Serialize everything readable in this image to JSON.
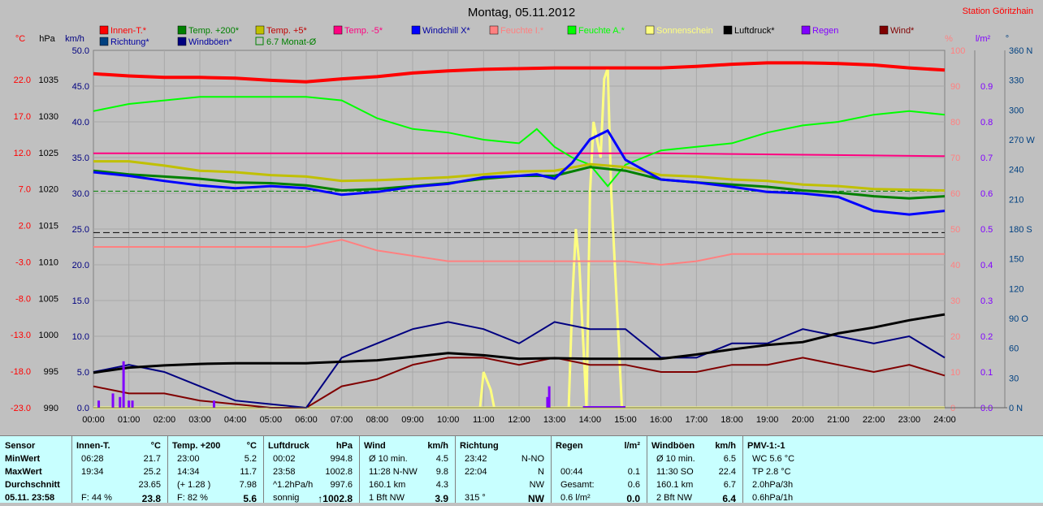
{
  "title": "Montag, 05.11.2012",
  "station": "Station Göritzhain",
  "unit_labels": {
    "temp": "°C",
    "press": "hPa",
    "wind": "km/h",
    "hum": "%",
    "rain": "l/m²",
    "dir": "°"
  },
  "legend": [
    {
      "label": "Innen-T.*",
      "color": "#ff0000"
    },
    {
      "label": "Temp. +200*",
      "color": "#008000"
    },
    {
      "label": "Temp. +5*",
      "color": "#c0c000"
    },
    {
      "label": "Temp. -5*",
      "color": "#ff0080"
    },
    {
      "label": "Windchill X*",
      "color": "#0000ff"
    },
    {
      "label": "Feuchte I.*",
      "color": "#ff8080"
    },
    {
      "label": "Feuchte A.*",
      "color": "#00ff00"
    },
    {
      "label": "Sonnenschein",
      "color": "#ffff80"
    },
    {
      "label": "Luftdruck*",
      "color": "#000000"
    },
    {
      "label": "Regen",
      "color": "#8000ff"
    },
    {
      "label": "Wind*",
      "color": "#800000"
    },
    {
      "label": "Richtung*",
      "color": "#004080"
    },
    {
      "label": "Windböen*",
      "color": "#000080"
    },
    {
      "label": "6.7 Monat-Ø",
      "color": "#008000"
    }
  ],
  "chart_data": {
    "type": "line",
    "title": "Montag, 05.11.2012",
    "x_ticks": [
      "00:00",
      "01:00",
      "02:00",
      "03:00",
      "04:00",
      "05:00",
      "06:00",
      "07:00",
      "08:00",
      "09:00",
      "10:00",
      "11:00",
      "12:00",
      "13:00",
      "14:00",
      "15:00",
      "16:00",
      "17:00",
      "18:00",
      "19:00",
      "20:00",
      "21:00",
      "22:00",
      "23:00",
      "24:00"
    ],
    "axes": {
      "temp_ticks": [
        "22.0",
        "17.0",
        "12.0",
        "7.0",
        "2.0",
        "-3.0",
        "-8.0",
        "-13.0",
        "-18.0",
        "-23.0"
      ],
      "press_ticks": [
        "1035",
        "1030",
        "1025",
        "1020",
        "1015",
        "1010",
        "1005",
        "1000",
        "995",
        "990"
      ],
      "wind_ticks": [
        "50.0",
        "45.0",
        "40.0",
        "35.0",
        "30.0",
        "25.0",
        "20.0",
        "15.0",
        "10.0",
        "5.0",
        "0.0"
      ],
      "hum_ticks": [
        "100",
        "90",
        "80",
        "70",
        "60",
        "50",
        "40",
        "30",
        "20",
        "10",
        "0"
      ],
      "rain_ticks": [
        "0.9",
        "0.8",
        "0.7",
        "0.6",
        "0.5",
        "0.4",
        "0.3",
        "0.2",
        "0.1",
        "0.0"
      ],
      "dir_ticks": [
        "360 N",
        "330",
        "300",
        "270 W",
        "240",
        "210",
        "180 S",
        "150",
        "120",
        "90 O",
        "60",
        "30",
        "0 N"
      ]
    },
    "series": [
      {
        "name": "Innen-T.*",
        "axis": "temp",
        "color": "#ff0000",
        "x": [
          0,
          1,
          2,
          3,
          4,
          5,
          6,
          7,
          8,
          9,
          10,
          11,
          12,
          13,
          14,
          15,
          16,
          17,
          18,
          19,
          20,
          21,
          22,
          23,
          24
        ],
        "values": [
          22.8,
          22.5,
          22.3,
          22.3,
          22.2,
          21.9,
          21.7,
          22.1,
          22.4,
          22.9,
          23.2,
          23.4,
          23.5,
          23.6,
          23.6,
          23.6,
          23.6,
          23.8,
          24.1,
          24.3,
          24.3,
          24.2,
          24.0,
          23.6,
          23.3
        ]
      },
      {
        "name": "Temp. +200*",
        "axis": "temp",
        "color": "#008000",
        "x": [
          0,
          1,
          2,
          3,
          4,
          5,
          6,
          7,
          8,
          9,
          10,
          11,
          12,
          13,
          14,
          15,
          16,
          17,
          18,
          19,
          20,
          21,
          22,
          23,
          24
        ],
        "values": [
          9.5,
          9.0,
          8.7,
          8.4,
          7.9,
          7.8,
          7.5,
          6.8,
          7.0,
          7.4,
          7.8,
          8.4,
          8.8,
          8.8,
          10.0,
          9.5,
          8.3,
          7.9,
          7.6,
          7.3,
          6.8,
          6.5,
          6.0,
          5.7,
          6.0
        ]
      },
      {
        "name": "Temp. +5*",
        "axis": "temp",
        "color": "#c0c000",
        "x": [
          0,
          1,
          2,
          3,
          4,
          5,
          6,
          7,
          8,
          9,
          10,
          11,
          12,
          13,
          14,
          15,
          16,
          17,
          18,
          19,
          20,
          21,
          22,
          23,
          24
        ],
        "values": [
          10.8,
          10.8,
          10.2,
          9.5,
          9.3,
          8.9,
          8.7,
          8.1,
          8.2,
          8.4,
          8.6,
          9.0,
          9.4,
          9.5,
          10.4,
          10.0,
          8.9,
          8.7,
          8.3,
          8.1,
          7.6,
          7.4,
          7.0,
          6.9,
          6.8
        ]
      },
      {
        "name": "Temp. -5*",
        "axis": "temp",
        "color": "#ff0080",
        "x": [
          0,
          4,
          8,
          12,
          16,
          20,
          24
        ],
        "values": [
          11.9,
          11.9,
          11.9,
          11.9,
          11.9,
          11.7,
          11.5
        ]
      },
      {
        "name": "Windchill X*",
        "axis": "temp",
        "color": "#0000ff",
        "x": [
          0,
          1,
          2,
          3,
          4,
          5,
          6,
          7,
          8,
          9,
          10,
          11,
          12,
          12.5,
          13,
          13.5,
          14,
          14.5,
          15,
          16,
          17,
          18,
          19,
          20,
          21,
          22,
          23,
          24
        ],
        "values": [
          9.3,
          8.8,
          8.1,
          7.5,
          7.1,
          7.4,
          7.1,
          6.2,
          6.6,
          7.3,
          7.7,
          8.6,
          8.8,
          9.0,
          8.4,
          10.6,
          13.8,
          15.0,
          11.0,
          8.3,
          7.9,
          7.3,
          6.6,
          6.4,
          5.9,
          4.0,
          3.5,
          4.0
        ]
      },
      {
        "name": "Feuchte I.*",
        "axis": "hum",
        "color": "#ff8080",
        "x": [
          0,
          3,
          6,
          7,
          8,
          10,
          12,
          14,
          15,
          16,
          17,
          18,
          20,
          22,
          24
        ],
        "values": [
          45,
          45,
          45,
          47,
          44,
          41,
          41,
          41,
          41,
          40,
          41,
          43,
          43,
          43,
          43
        ]
      },
      {
        "name": "Feuchte A.*",
        "axis": "hum",
        "color": "#00ff00",
        "x": [
          0,
          1,
          2,
          3,
          4,
          5,
          6,
          7,
          8,
          9,
          10,
          11,
          12,
          12.5,
          13,
          13.5,
          14,
          14.5,
          15,
          16,
          17,
          18,
          19,
          20,
          21,
          22,
          23,
          24
        ],
        "values": [
          83,
          85,
          86,
          87,
          87,
          87,
          87,
          86,
          81,
          78,
          77,
          75,
          74,
          78,
          73,
          70,
          68,
          62,
          68,
          72,
          73,
          74,
          77,
          79,
          80,
          82,
          83,
          82
        ]
      },
      {
        "name": "Sonnenschein",
        "axis": "hum",
        "color": "#ffff80",
        "x": [
          0,
          10.9,
          11,
          11.2,
          11.3,
          13.4,
          13.5,
          13.6,
          13.7,
          13.8,
          13.9,
          14,
          14.1,
          14.2,
          14.3,
          14.4,
          14.5,
          14.6,
          14.7,
          14.8,
          14.9,
          15,
          24
        ],
        "values": [
          0,
          0,
          10,
          5,
          0,
          0,
          30,
          50,
          40,
          20,
          0,
          60,
          80,
          75,
          70,
          92,
          95,
          60,
          40,
          20,
          0,
          0,
          0
        ]
      },
      {
        "name": "Luftdruck*",
        "axis": "press",
        "color": "#000000",
        "x": [
          0,
          1,
          2,
          3,
          4,
          5,
          6,
          7,
          8,
          9,
          10,
          11,
          12,
          13,
          14,
          15,
          16,
          17,
          18,
          19,
          20,
          21,
          22,
          23,
          24
        ],
        "values": [
          994.8,
          995.5,
          995.8,
          996.0,
          996.1,
          996.1,
          996.1,
          996.3,
          996.5,
          997.0,
          997.5,
          997.2,
          996.7,
          996.8,
          996.7,
          996.7,
          996.7,
          997.3,
          998.0,
          998.6,
          999.0,
          1000.2,
          1001.0,
          1002.0,
          1002.8
        ]
      },
      {
        "name": "Regen",
        "axis": "rain",
        "color": "#8000ff",
        "x": [
          0.15,
          0.55,
          0.75,
          0.85,
          1.0,
          1.1,
          3.4,
          12.8,
          12.85
        ],
        "values": [
          0.02,
          0.04,
          0.03,
          0.13,
          0.02,
          0.02,
          0.02,
          0.03,
          0.06
        ]
      },
      {
        "name": "Wind*",
        "axis": "wind",
        "color": "#800000",
        "x": [
          0,
          1,
          2,
          3,
          4,
          5,
          6,
          7,
          8,
          9,
          10,
          11,
          12,
          13,
          14,
          15,
          16,
          17,
          18,
          19,
          20,
          21,
          22,
          23,
          24
        ],
        "values": [
          3,
          2,
          2,
          1,
          0.5,
          0,
          0,
          3,
          4,
          6,
          7,
          7,
          6,
          7,
          6,
          6,
          5,
          5,
          6,
          6,
          7,
          6,
          5,
          6,
          4.5
        ]
      },
      {
        "name": "Windböen*",
        "axis": "wind",
        "color": "#000080",
        "x": [
          0,
          1,
          2,
          3,
          4,
          5,
          6,
          7,
          8,
          9,
          10,
          11,
          12,
          13,
          14,
          15,
          16,
          17,
          18,
          19,
          20,
          21,
          22,
          23,
          24
        ],
        "values": [
          5,
          6,
          5,
          3,
          1,
          0.5,
          0,
          7,
          9,
          11,
          12,
          11,
          9,
          12,
          11,
          11,
          7,
          7,
          9,
          9,
          11,
          10,
          9,
          10,
          7
        ]
      },
      {
        "name": "6.7 Monat-Ø",
        "axis": "temp",
        "color": "#008000",
        "x": [
          0,
          24
        ],
        "values": [
          6.7,
          6.7
        ]
      }
    ]
  },
  "table": {
    "columns": [
      {
        "head": "Sensor",
        "unit": "",
        "rows": [
          [
            "MinWert",
            ""
          ],
          [
            "MaxWert",
            ""
          ],
          [
            "Durchschnitt",
            ""
          ],
          [
            "05.11. 23:58",
            ""
          ]
        ]
      },
      {
        "head": "Innen-T.",
        "unit": "°C",
        "rows": [
          [
            "06:28",
            "21.7"
          ],
          [
            "19:34",
            "25.2"
          ],
          [
            "",
            "23.65"
          ],
          [
            "F: 44 %",
            "23.8"
          ]
        ]
      },
      {
        "head": "Temp. +200",
        "unit": "°C",
        "rows": [
          [
            "23:00",
            "5.2"
          ],
          [
            "14:34",
            "11.7"
          ],
          [
            "(+ 1.28 )",
            "7.98"
          ],
          [
            "F: 82 %",
            "5.6"
          ]
        ]
      },
      {
        "head": "Luftdruck",
        "unit": "hPa",
        "rows": [
          [
            "00:02",
            "994.8"
          ],
          [
            "23:58",
            "1002.8"
          ],
          [
            "^1.2hPa/h",
            "997.6"
          ],
          [
            "sonnig",
            "↑1002.8"
          ]
        ]
      },
      {
        "head": "Wind",
        "unit": "km/h",
        "rows": [
          [
            "Ø 10 min.",
            "4.5"
          ],
          [
            "11:28  N-NW",
            "9.8"
          ],
          [
            "160.1 km",
            "4.3"
          ],
          [
            "1 Bft NW",
            "3.9"
          ]
        ]
      },
      {
        "head": "Richtung",
        "unit": "",
        "rows": [
          [
            "23:42",
            "N-NO"
          ],
          [
            "22:04",
            "N"
          ],
          [
            "",
            "NW"
          ],
          [
            "315 °",
            "NW"
          ]
        ]
      },
      {
        "head": "Regen",
        "unit": "l/m²",
        "rows": [
          [
            "",
            ""
          ],
          [
            "00:44",
            "0.1"
          ],
          [
            "Gesamt:",
            "0.6"
          ],
          [
            "0.6 l/m²",
            "0.0"
          ]
        ]
      },
      {
        "head": "Windböen",
        "unit": "km/h",
        "rows": [
          [
            "Ø 10 min.",
            "6.5"
          ],
          [
            "11:30  SO",
            "22.4"
          ],
          [
            "160.1 km",
            "6.7"
          ],
          [
            "2 Bft NW",
            "6.4"
          ]
        ]
      },
      {
        "head": "PMV-1:-1",
        "unit": "",
        "rows": [
          [
            "WC 5.6 °C",
            ""
          ],
          [
            "TP 2.8 °C",
            ""
          ],
          [
            "2.0hPa/3h",
            ""
          ],
          [
            "0.6hPa/1h",
            ""
          ]
        ]
      }
    ]
  }
}
